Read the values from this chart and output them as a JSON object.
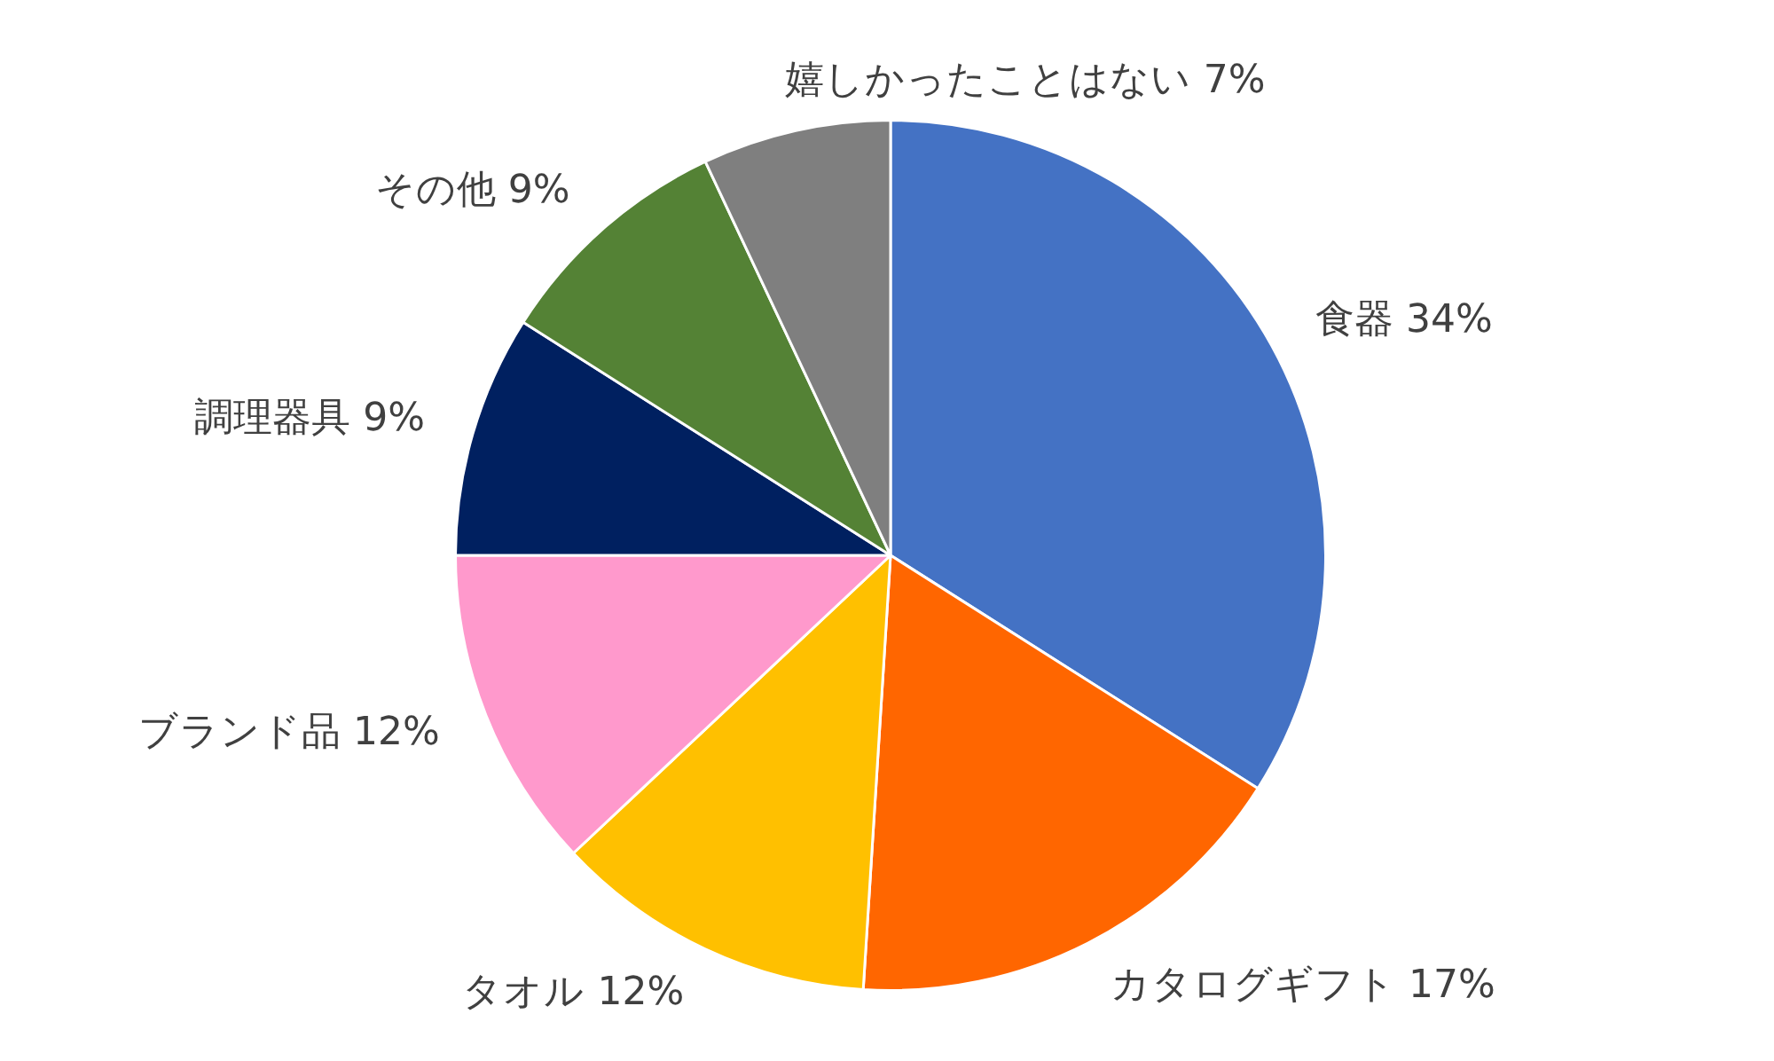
{
  "chart_data": {
    "type": "pie",
    "categories": [
      "食器",
      "カタログギフト",
      "タオル",
      "ブランド品",
      "調理器具",
      "その他",
      "嬉しかったことはない"
    ],
    "values": [
      34,
      17,
      12,
      12,
      9,
      9,
      7
    ],
    "colors": [
      "#4472c4",
      "#ff6600",
      "#ffc000",
      "#ff99cc",
      "#002060",
      "#548235",
      "#7f7f7f"
    ],
    "value_labels": [
      "34%",
      "17%",
      "12%",
      "12%",
      "9%",
      "9%",
      "7%"
    ],
    "legend": false
  }
}
